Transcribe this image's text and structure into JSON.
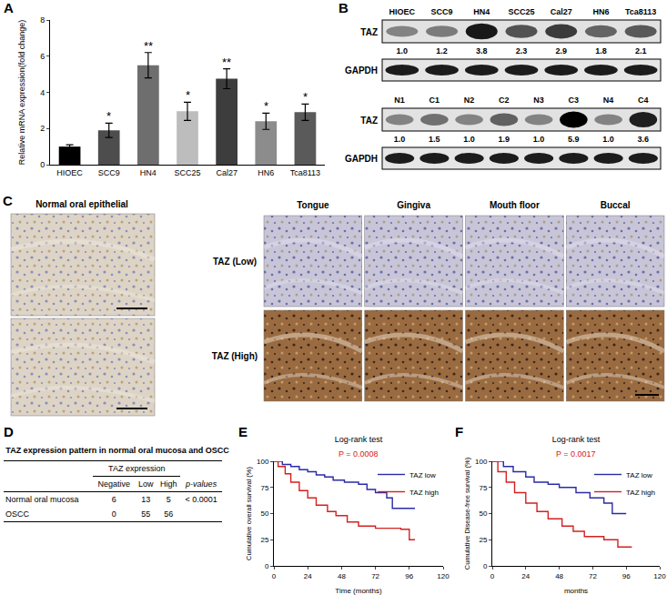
{
  "chart_data": [
    {
      "panel": "A",
      "type": "bar",
      "categories": [
        "HIOEC",
        "SCC9",
        "HN4",
        "SCC25",
        "Cal27",
        "HN6",
        "Tca8113"
      ],
      "values": [
        1.0,
        1.9,
        5.5,
        2.95,
        4.75,
        2.4,
        2.9
      ],
      "errors": [
        0.1,
        0.4,
        0.7,
        0.5,
        0.55,
        0.45,
        0.45
      ],
      "colors": [
        "#000000",
        "#4d4d4d",
        "#6e6e6e",
        "#bdbdbd",
        "#3d3d3d",
        "#8c8c8c",
        "#5a5a5a"
      ],
      "y_label": "Relative mRNA expression(fold change)",
      "ylim": [
        0,
        8
      ],
      "yticks": [
        0,
        2,
        4,
        6,
        8
      ],
      "annotations": [
        {
          "category": "SCC9",
          "text": "*"
        },
        {
          "category": "HN4",
          "text": "**"
        },
        {
          "category": "SCC25",
          "text": "*"
        },
        {
          "category": "Cal27",
          "text": "**"
        },
        {
          "category": "HN6",
          "text": "*"
        },
        {
          "category": "Tca8113",
          "text": "*"
        }
      ]
    },
    {
      "panel": "E",
      "type": "line",
      "title": "Log-rank test",
      "annotation": "P = 0.0008",
      "x_label": "Time (months)",
      "y_label": "Cumulative overall survival (%)",
      "xlim": [
        0,
        120
      ],
      "xticks": [
        0,
        24,
        48,
        72,
        96,
        120
      ],
      "ylim": [
        0,
        100
      ],
      "yticks": [
        0,
        25,
        50,
        75,
        100
      ],
      "legend": "top-right",
      "line_style": "step",
      "series": [
        {
          "name": "TAZ low",
          "color": "#2a2aa8",
          "x": [
            0,
            6,
            12,
            18,
            24,
            30,
            36,
            42,
            50,
            60,
            66,
            72,
            80,
            84,
            100
          ],
          "values": [
            100,
            97,
            95,
            92,
            90,
            87,
            85,
            82,
            80,
            78,
            73,
            70,
            65,
            55,
            55
          ]
        },
        {
          "name": "TAZ high",
          "color": "#d42020",
          "x": [
            0,
            3,
            8,
            12,
            18,
            24,
            30,
            38,
            44,
            52,
            60,
            72,
            90,
            96,
            100
          ],
          "values": [
            100,
            95,
            88,
            80,
            72,
            65,
            58,
            52,
            48,
            42,
            38,
            36,
            35,
            25,
            25
          ]
        }
      ]
    },
    {
      "panel": "F",
      "type": "line",
      "title": "Log-rank test",
      "annotation": "P = 0.0017",
      "x_label": "months",
      "y_label": "Cumulative Disease-free survival (%)",
      "xlim": [
        0,
        120
      ],
      "xticks": [
        0,
        24,
        48,
        72,
        96,
        120
      ],
      "ylim": [
        0,
        100
      ],
      "yticks": [
        0,
        25,
        50,
        75,
        100
      ],
      "legend": "top-right",
      "line_style": "step",
      "series": [
        {
          "name": "TAZ low",
          "color": "#2a2aa8",
          "x": [
            0,
            8,
            15,
            24,
            30,
            40,
            48,
            60,
            70,
            80,
            86,
            96
          ],
          "values": [
            100,
            95,
            90,
            85,
            80,
            78,
            75,
            70,
            65,
            60,
            50,
            50
          ]
        },
        {
          "name": "TAZ high",
          "color": "#d42020",
          "x": [
            0,
            4,
            10,
            16,
            24,
            32,
            40,
            50,
            58,
            66,
            80,
            90,
            100
          ],
          "values": [
            100,
            90,
            80,
            70,
            60,
            52,
            45,
            38,
            33,
            28,
            25,
            18,
            18
          ]
        }
      ]
    }
  ],
  "blots": {
    "panel": "B",
    "rows": [
      "TAZ",
      "GAPDH"
    ],
    "upper": {
      "lanes": [
        "HIOEC",
        "SCC9",
        "HN4",
        "SCC25",
        "Cal27",
        "HN6",
        "Tca8113"
      ],
      "values": [
        "1.0",
        "1.2",
        "3.8",
        "2.3",
        "2.9",
        "1.8",
        "2.1"
      ]
    },
    "lower": {
      "lanes": [
        "N1",
        "C1",
        "N2",
        "C2",
        "N3",
        "C3",
        "N4",
        "C4"
      ],
      "values": [
        "1.0",
        "1.5",
        "1.0",
        "1.9",
        "1.0",
        "5.9",
        "1.0",
        "3.6"
      ]
    }
  },
  "micrographs": {
    "panel": "C",
    "normal_title": "Normal oral epithelial",
    "sites": [
      "Tongue",
      "Gingiva",
      "Mouth floor",
      "Buccal"
    ],
    "rows": [
      "TAZ (Low)",
      "TAZ (High)"
    ]
  },
  "table": {
    "panel": "D",
    "title": "TAZ expression pattern in normal oral mucosa and OSCC",
    "group_header": "TAZ  expression",
    "columns": [
      "Negative",
      "Low",
      "High"
    ],
    "p_header": "p-values",
    "rows": [
      {
        "label": "Normal oral mucosa",
        "values": [
          6,
          13,
          5
        ],
        "p": "< 0.0001"
      },
      {
        "label": "OSCC",
        "values": [
          0,
          55,
          56
        ]
      }
    ]
  }
}
